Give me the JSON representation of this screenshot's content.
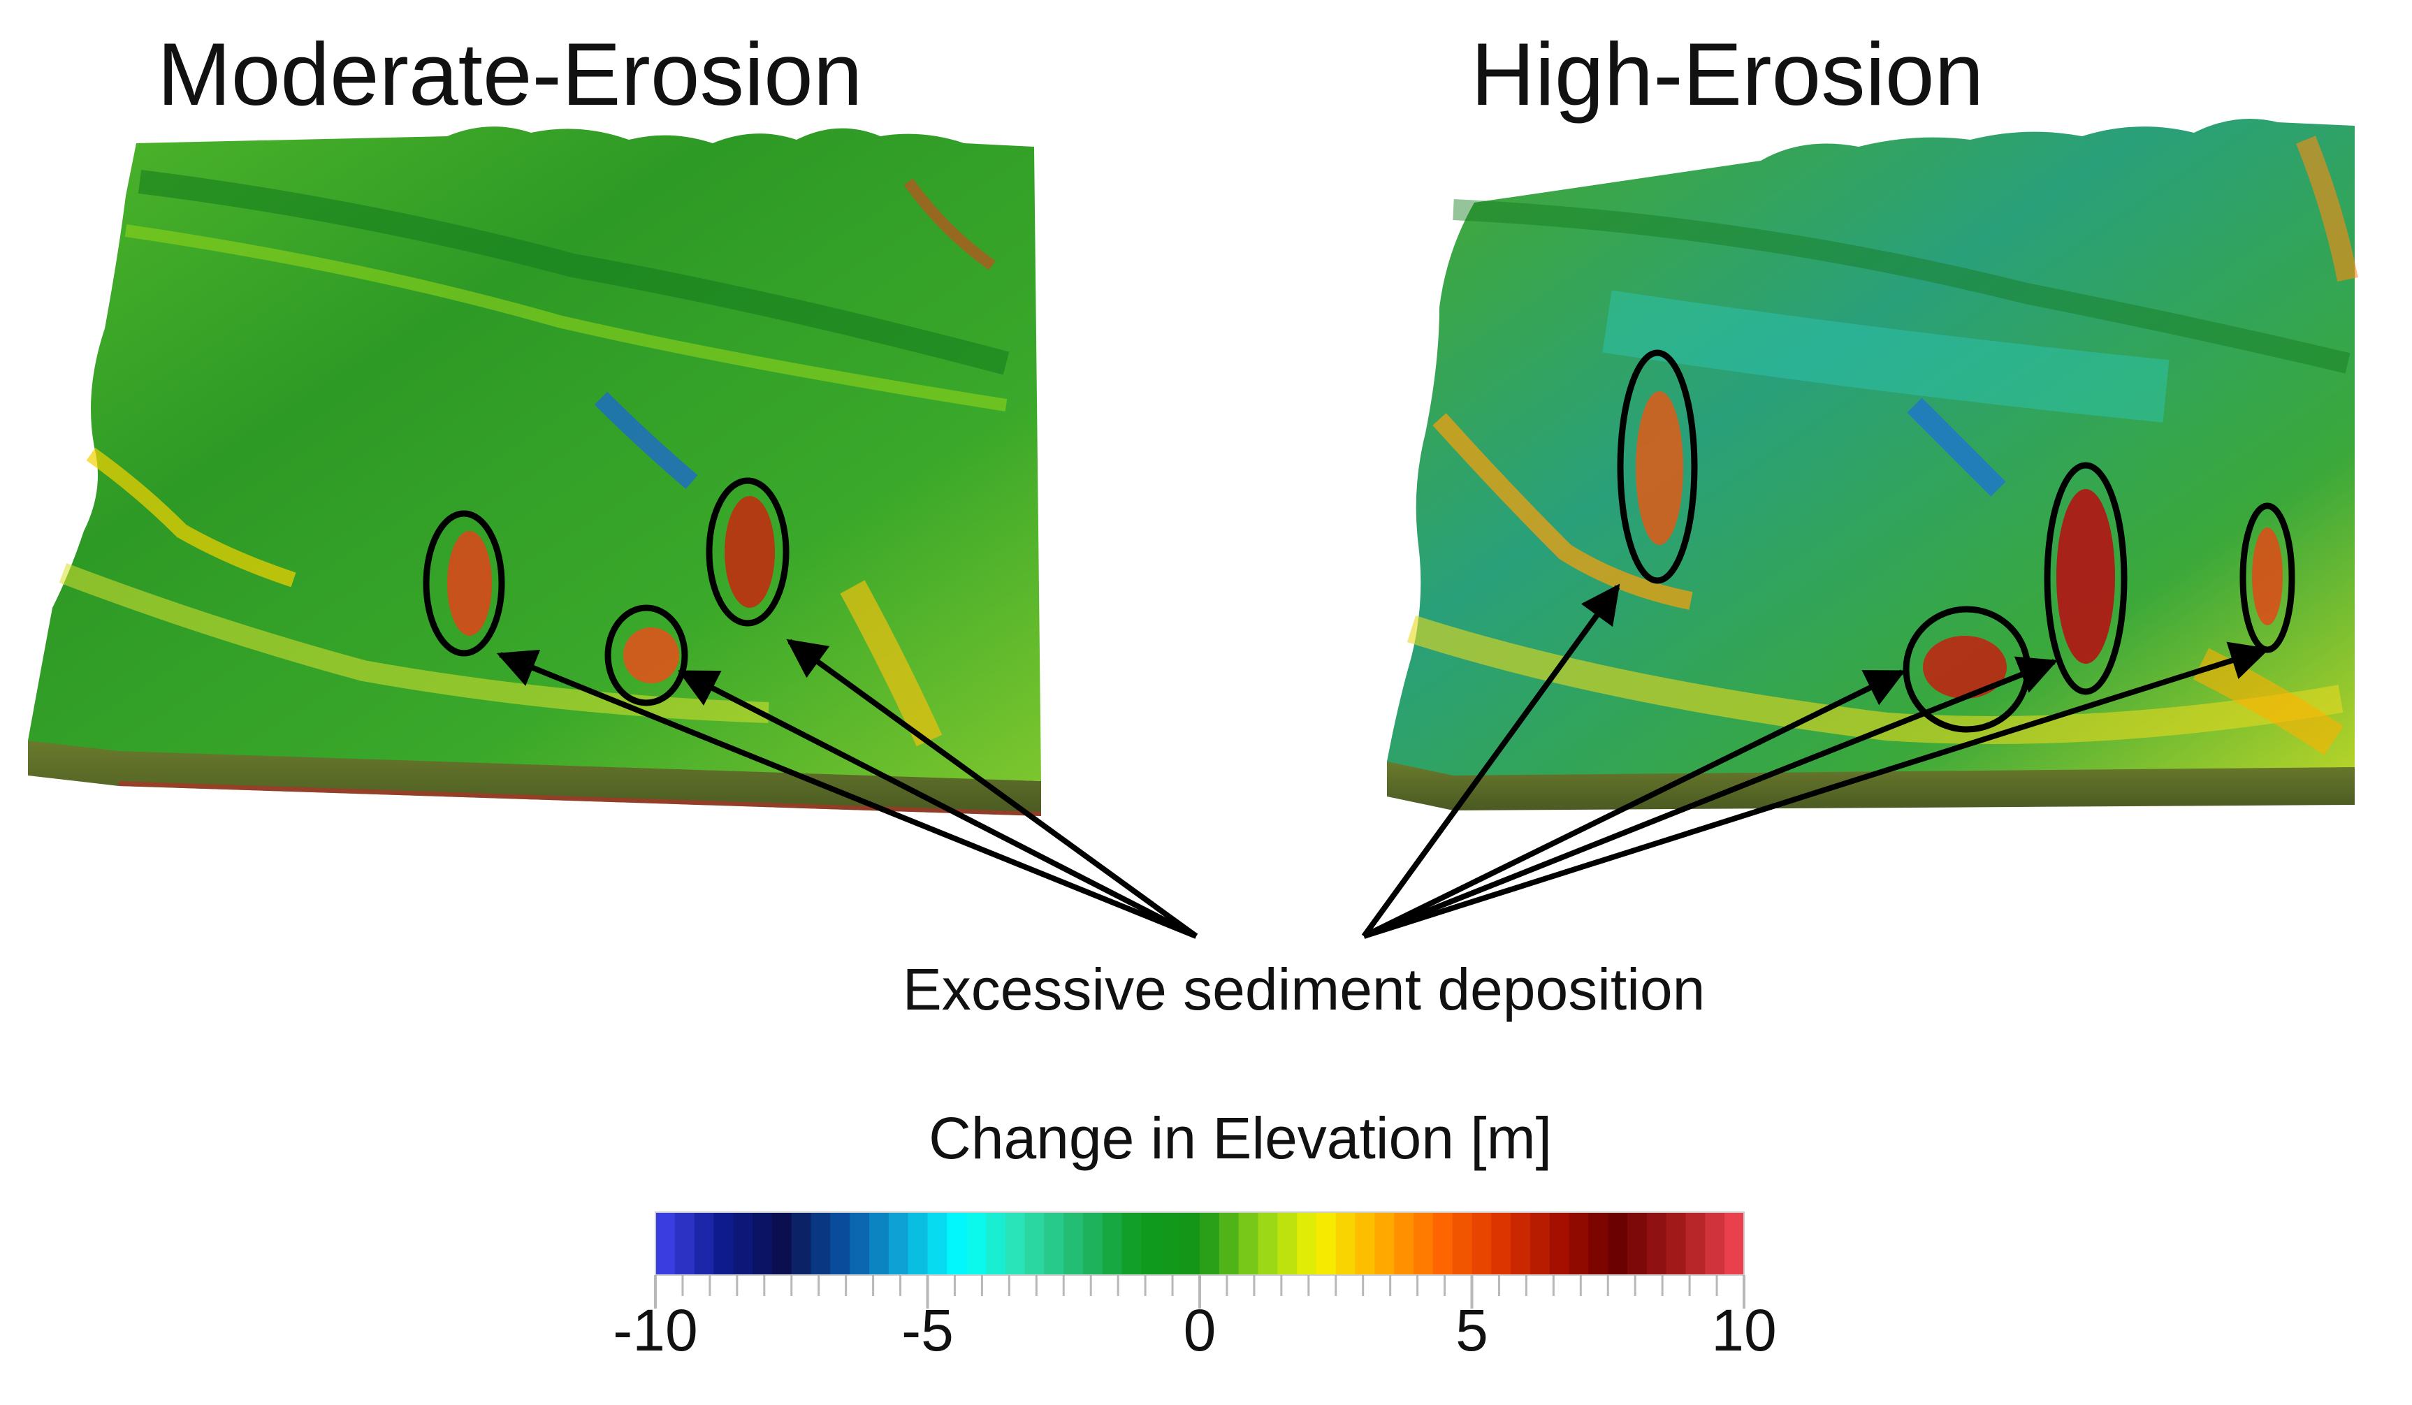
{
  "panels": {
    "left": {
      "title": "Moderate-Erosion",
      "deposition_sites": 3
    },
    "right": {
      "title": "High-Erosion",
      "deposition_sites": 4
    }
  },
  "annotation": {
    "label": "Excessive sediment deposition"
  },
  "colorbar": {
    "title": "Change in Elevation [m]",
    "min": -10,
    "max": 10,
    "tick_values": [
      -10,
      -5,
      0,
      5,
      10
    ],
    "tick_labels": [
      "-10",
      "-5",
      "0",
      "5",
      "10"
    ],
    "colormap": [
      "#3a3ee0",
      "#0c1a8a",
      "#0b0f4e",
      "#0a4fa0",
      "#0ea8d8",
      "#00ffff",
      "#2ee0b0",
      "#21b86a",
      "#0e9a1e",
      "#159617",
      "#8ed31a",
      "#f4f200",
      "#ffb000",
      "#ff6a00",
      "#e03800",
      "#a81000",
      "#6a0000",
      "#a01818",
      "#e8404c"
    ]
  },
  "colors": {
    "terrain_green": "#2f9a2a",
    "deep_green": "#137a1e",
    "light_green": "#6cc22a",
    "yellow": "#e8e020",
    "orange": "#f08a10",
    "red": "#d42814",
    "teal": "#2cb8a0",
    "blue": "#2a8ad0",
    "side_face": "#5e6e28",
    "bottom_edge": "#b0302a"
  }
}
